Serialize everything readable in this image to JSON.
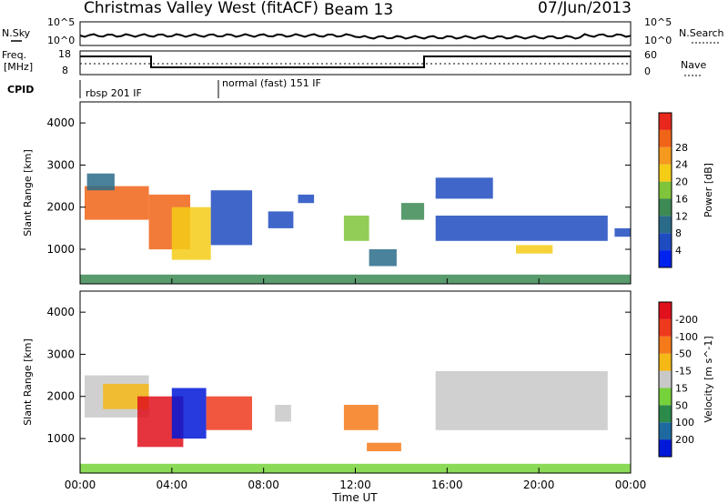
{
  "header": {
    "radar": "Christmas Valley West (fitACF)",
    "beam": "Beam 13",
    "date": "07/Jun/2013"
  },
  "strip_labels": {
    "nsky": "N.Sky",
    "nsearch": "N.Search",
    "freq_line1": "Freq.",
    "freq_line2": "[MHz]",
    "nave": "Nave",
    "cpid": "CPID"
  },
  "strip_ticks": {
    "noise_left": [
      "10^5",
      "10^0"
    ],
    "noise_right": [
      "10^5",
      "10^0"
    ],
    "freq_left": [
      "18",
      "8"
    ],
    "nave_right": [
      "60",
      "0"
    ]
  },
  "cpid_segments": [
    "rbsp 201 IF",
    "normal (fast) 151 IF"
  ],
  "xaxis": {
    "label": "Time UT",
    "ticks": [
      "00:00",
      "04:00",
      "08:00",
      "12:00",
      "16:00",
      "20:00",
      "00:00"
    ]
  },
  "chart_data": [
    {
      "type": "heatmap",
      "title": "Power",
      "xlabel": "Time UT",
      "ylabel": "Slant Range [km]",
      "x_ticks_hours": [
        0,
        4,
        8,
        12,
        16,
        20,
        24
      ],
      "ylim": [
        180,
        4500
      ],
      "y_ticks": [
        1000,
        2000,
        3000,
        4000
      ],
      "colorbar": {
        "label": "Power [dB]",
        "ticks": [
          "4",
          "8",
          "12",
          "16",
          "20",
          "24",
          "28"
        ],
        "colors": [
          "#0022ee",
          "#1e4bbf",
          "#2a6b8a",
          "#3d8a55",
          "#7fc43a",
          "#f5cc16",
          "#f59a1e",
          "#f06418",
          "#e8281c"
        ]
      },
      "regions": [
        {
          "t0": 0.2,
          "t1": 3.0,
          "r0": 1700,
          "r1": 2500,
          "level": 7
        },
        {
          "t0": 0.3,
          "t1": 1.5,
          "r0": 2400,
          "r1": 2800,
          "level": 2
        },
        {
          "t0": 3.0,
          "t1": 4.8,
          "r0": 1000,
          "r1": 2300,
          "level": 7
        },
        {
          "t0": 4.0,
          "t1": 5.7,
          "r0": 750,
          "r1": 2000,
          "level": 5
        },
        {
          "t0": 5.7,
          "t1": 7.5,
          "r0": 1100,
          "r1": 2400,
          "level": 1
        },
        {
          "t0": 8.2,
          "t1": 9.3,
          "r0": 1500,
          "r1": 1900,
          "level": 1
        },
        {
          "t0": 9.5,
          "t1": 10.2,
          "r0": 2100,
          "r1": 2300,
          "level": 1
        },
        {
          "t0": 11.5,
          "t1": 12.6,
          "r0": 1200,
          "r1": 1800,
          "level": 4
        },
        {
          "t0": 12.6,
          "t1": 13.8,
          "r0": 600,
          "r1": 1000,
          "level": 2
        },
        {
          "t0": 14.0,
          "t1": 15.0,
          "r0": 1700,
          "r1": 2100,
          "level": 3
        },
        {
          "t0": 15.5,
          "t1": 18.0,
          "r0": 2200,
          "r1": 2700,
          "level": 1
        },
        {
          "t0": 15.5,
          "t1": 23.0,
          "r0": 1200,
          "r1": 1800,
          "level": 1
        },
        {
          "t0": 19.0,
          "t1": 20.6,
          "r0": 900,
          "r1": 1100,
          "level": 5
        },
        {
          "t0": 23.3,
          "t1": 24.0,
          "r0": 1300,
          "r1": 1500,
          "level": 1
        },
        {
          "t0": 0.0,
          "t1": 24.0,
          "r0": 190,
          "r1": 400,
          "level": 3
        }
      ]
    },
    {
      "type": "heatmap",
      "title": "Velocity",
      "xlabel": "Time UT",
      "ylabel": "Slant Range [km]",
      "x_ticks_hours": [
        0,
        4,
        8,
        12,
        16,
        20,
        24
      ],
      "ylim": [
        180,
        4500
      ],
      "y_ticks": [
        1000,
        2000,
        3000,
        4000
      ],
      "colorbar": {
        "label": "Velocity [m s^-1]",
        "ticks": [
          "200",
          "100",
          "50",
          "15",
          "-15",
          "-50",
          "-100",
          "-200"
        ],
        "colors": [
          "#0018d8",
          "#1e6aa0",
          "#2c8a4a",
          "#76d23a",
          "#c8c8c8",
          "#f5b816",
          "#f57a1a",
          "#ee3a1c",
          "#e0101c"
        ]
      },
      "regions": [
        {
          "t0": 0.2,
          "t1": 3.0,
          "r0": 1500,
          "r1": 2500,
          "level": 4
        },
        {
          "t0": 1.0,
          "t1": 3.0,
          "r0": 1700,
          "r1": 2300,
          "level": 5
        },
        {
          "t0": 2.5,
          "t1": 4.5,
          "r0": 800,
          "r1": 2000,
          "level": 8
        },
        {
          "t0": 4.0,
          "t1": 5.5,
          "r0": 1000,
          "r1": 2200,
          "level": 0
        },
        {
          "t0": 5.5,
          "t1": 7.5,
          "r0": 1200,
          "r1": 2000,
          "level": 7
        },
        {
          "t0": 8.5,
          "t1": 9.2,
          "r0": 1400,
          "r1": 1800,
          "level": 4
        },
        {
          "t0": 11.5,
          "t1": 13.0,
          "r0": 1200,
          "r1": 1800,
          "level": 6
        },
        {
          "t0": 12.5,
          "t1": 14.0,
          "r0": 700,
          "r1": 900,
          "level": 6
        },
        {
          "t0": 15.5,
          "t1": 23.0,
          "r0": 1200,
          "r1": 2600,
          "level": 4
        },
        {
          "t0": 0.0,
          "t1": 24.0,
          "r0": 190,
          "r1": 400,
          "level": 3
        }
      ]
    }
  ]
}
